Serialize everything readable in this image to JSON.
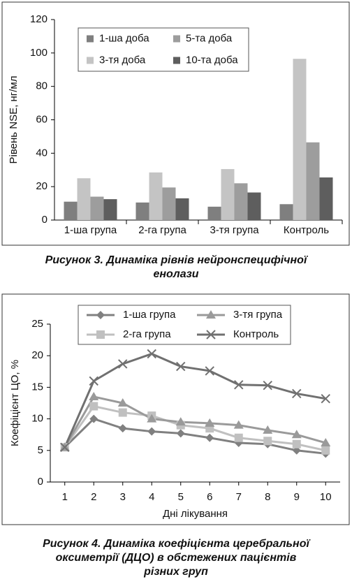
{
  "chart_data": [
    {
      "type": "bar",
      "caption": [
        "Рисунок 3.  Динаміка рівнів нейронспецифічної",
        "енолази"
      ],
      "ylabel": "Рівень NSE, нг/мл",
      "categories": [
        "1-ша група",
        "2-га група",
        "3-тя група",
        "Контроль"
      ],
      "series": [
        {
          "name": "1-ша доба",
          "color": "#7f7f7f",
          "values": [
            11,
            10.5,
            8,
            9.5
          ]
        },
        {
          "name": "3-тя доба",
          "color": "#c4c4c4",
          "values": [
            25,
            28.5,
            30.5,
            96.5
          ]
        },
        {
          "name": "5-та доба",
          "color": "#9d9d9d",
          "values": [
            14,
            19.5,
            22,
            46.5
          ]
        },
        {
          "name": "10-та доба",
          "color": "#5e5e5e",
          "values": [
            12.5,
            13,
            16.5,
            25.5
          ]
        }
      ],
      "ylim": [
        0,
        120
      ],
      "yticks": [
        0,
        20,
        40,
        60,
        80,
        100,
        120
      ],
      "grid": false,
      "legend": "top-left"
    },
    {
      "type": "line",
      "caption": [
        "Рисунок 4.  Динаміка коефіцієнта церебральної",
        "оксиметрії (ДЦО) в обстежених пацієнтів",
        "різних груп"
      ],
      "xlabel": "Дні лікування",
      "ylabel": "Коефіцієнт ЦО, %",
      "x": [
        1,
        2,
        3,
        4,
        5,
        6,
        7,
        8,
        9,
        10
      ],
      "series": [
        {
          "name": "1-ша  група",
          "color": "#808080",
          "marker": "diamond",
          "values": [
            5.5,
            10,
            8.5,
            8,
            7.7,
            7,
            6.2,
            6,
            5,
            4.5
          ]
        },
        {
          "name": "2-га група",
          "color": "#c0c0c0",
          "marker": "square",
          "values": [
            5.5,
            12,
            11,
            10.5,
            9,
            8.5,
            7,
            6.5,
            6,
            5
          ]
        },
        {
          "name": "3-тя група",
          "color": "#9a9a9a",
          "marker": "triangle",
          "values": [
            5.5,
            13.5,
            12.5,
            10,
            9.5,
            9.3,
            9,
            8.2,
            7.5,
            6.2
          ]
        },
        {
          "name": "Контроль",
          "color": "#707070",
          "marker": "x",
          "values": [
            5.5,
            16,
            18.7,
            20.3,
            18.3,
            17.6,
            15.4,
            15.3,
            14,
            13.2
          ]
        }
      ],
      "xlim": [
        0.5,
        10.5
      ],
      "xticks": [
        1,
        2,
        3,
        4,
        5,
        6,
        7,
        8,
        9,
        10
      ],
      "ylim": [
        0,
        25
      ],
      "yticks": [
        0,
        5,
        10,
        15,
        20,
        25
      ],
      "grid": false,
      "legend": "top-left"
    }
  ]
}
